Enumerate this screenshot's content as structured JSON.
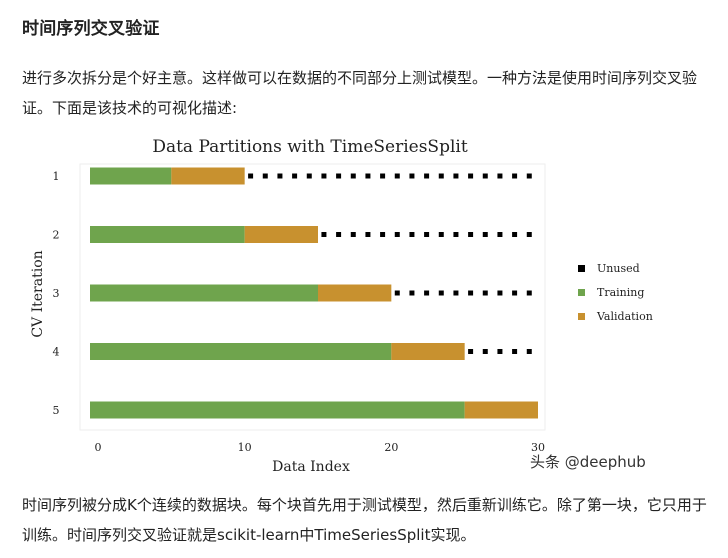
{
  "article": {
    "heading": "时间序列交叉验证",
    "intro": "进行多次拆分是个好主意。这样做可以在数据的不同部分上测试模型。一种方法是使用时间序列交叉验证。下面是该技术的可视化描述:",
    "outro": "时间序列被分成K个连续的数据块。每个块首先用于测试模型，然后重新训练它。除了第一块，它只用于训练。时间序列交叉验证就是scikit-learn中TimeSeriesSplit实现。"
  },
  "watermark": "头条 @deephub",
  "colors": {
    "training": "#6fa44d",
    "validation": "#c8912f",
    "unused": "#000000"
  },
  "chart_data": {
    "type": "bar",
    "orientation": "horizontal",
    "title": "Data Partitions with TimeSeriesSplit",
    "xlabel": "Data Index",
    "ylabel": "CV Iteration",
    "xlim": [
      -0.5,
      30
    ],
    "xticks": [
      0,
      10,
      20,
      30
    ],
    "categories": [
      "1",
      "2",
      "3",
      "4",
      "5"
    ],
    "legend_position": "right",
    "legend": [
      "Unused",
      "Training",
      "Validation"
    ],
    "series": [
      {
        "name": "Training",
        "start": [
          0,
          0,
          0,
          0,
          0
        ],
        "end": [
          5,
          10,
          15,
          20,
          25
        ]
      },
      {
        "name": "Validation",
        "start": [
          5,
          10,
          15,
          20,
          25
        ],
        "end": [
          10,
          15,
          20,
          25,
          30
        ]
      },
      {
        "name": "Unused",
        "start": [
          10,
          15,
          20,
          25,
          30
        ],
        "end": [
          30,
          30,
          30,
          30,
          30
        ]
      }
    ]
  }
}
